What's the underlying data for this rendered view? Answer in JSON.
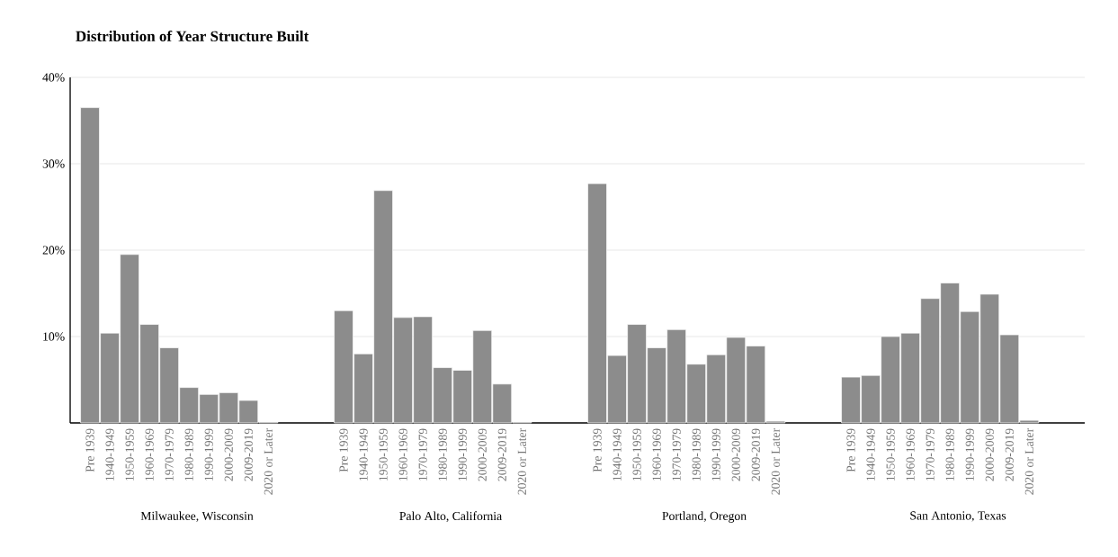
{
  "chart_data": [
    {
      "type": "bar",
      "title": "Distribution of Year Structure Built",
      "xlabel": "Milwaukee, Wisconsin",
      "color": "#8c8c8c",
      "grid": "y",
      "categories": [
        "Pre 1939",
        "1940-1949",
        "1950-1959",
        "1960-1969",
        "1970-1979",
        "1980-1989",
        "1990-1999",
        "2000-2009",
        "2009-2019",
        "2020 or Later"
      ],
      "values": [
        36.5,
        10.4,
        19.5,
        11.4,
        8.7,
        4.1,
        3.3,
        3.5,
        2.6,
        0.1
      ],
      "ylim": [
        0,
        40
      ],
      "yticks": [
        {
          "value": 10,
          "label": "10%"
        },
        {
          "value": 20,
          "label": "20%"
        },
        {
          "value": 30,
          "label": "30%"
        },
        {
          "value": 40,
          "label": "40%"
        }
      ]
    },
    {
      "type": "bar",
      "xlabel": "Palo Alto, California",
      "color": "#8c8c8c",
      "grid": "y",
      "tick_labels": "x",
      "categories": [
        "Pre 1939",
        "1940-1949",
        "1950-1959",
        "1960-1969",
        "1970-1979",
        "1980-1989",
        "1990-1999",
        "2000-2009",
        "2009-2019",
        "2020 or Later"
      ],
      "values": [
        13.0,
        8.0,
        26.9,
        12.2,
        12.3,
        6.4,
        6.1,
        10.7,
        4.5,
        0.1
      ],
      "ylim": [
        0,
        40
      ],
      "yticks": [
        10,
        20,
        30,
        40
      ]
    },
    {
      "type": "bar",
      "xlabel": "Portland, Oregon",
      "color": "#8c8c8c",
      "grid": "y",
      "tick_labels": "x",
      "categories": [
        "Pre 1939",
        "1940-1949",
        "1950-1959",
        "1960-1969",
        "1970-1979",
        "1980-1989",
        "1990-1999",
        "2000-2009",
        "2009-2019",
        "2020 or Later"
      ],
      "values": [
        27.7,
        7.8,
        11.4,
        8.7,
        10.8,
        6.8,
        7.9,
        9.9,
        8.9,
        0.2
      ],
      "ylim": [
        0,
        40
      ],
      "yticks": [
        10,
        20,
        30,
        40
      ]
    },
    {
      "type": "bar",
      "xlabel": "San Antonio, Texas",
      "color": "#8c8c8c",
      "grid": "y",
      "tick_labels": "x",
      "categories": [
        "Pre 1939",
        "1940-1949",
        "1950-1959",
        "1960-1969",
        "1970-1979",
        "1980-1989",
        "1990-1999",
        "2000-2009",
        "2009-2019",
        "2020 or Later"
      ],
      "values": [
        5.3,
        5.5,
        10.0,
        10.4,
        14.4,
        16.2,
        12.9,
        14.9,
        10.2,
        0.3
      ],
      "ylim": [
        0,
        40
      ],
      "yticks": [
        10,
        20,
        30,
        40
      ]
    }
  ]
}
